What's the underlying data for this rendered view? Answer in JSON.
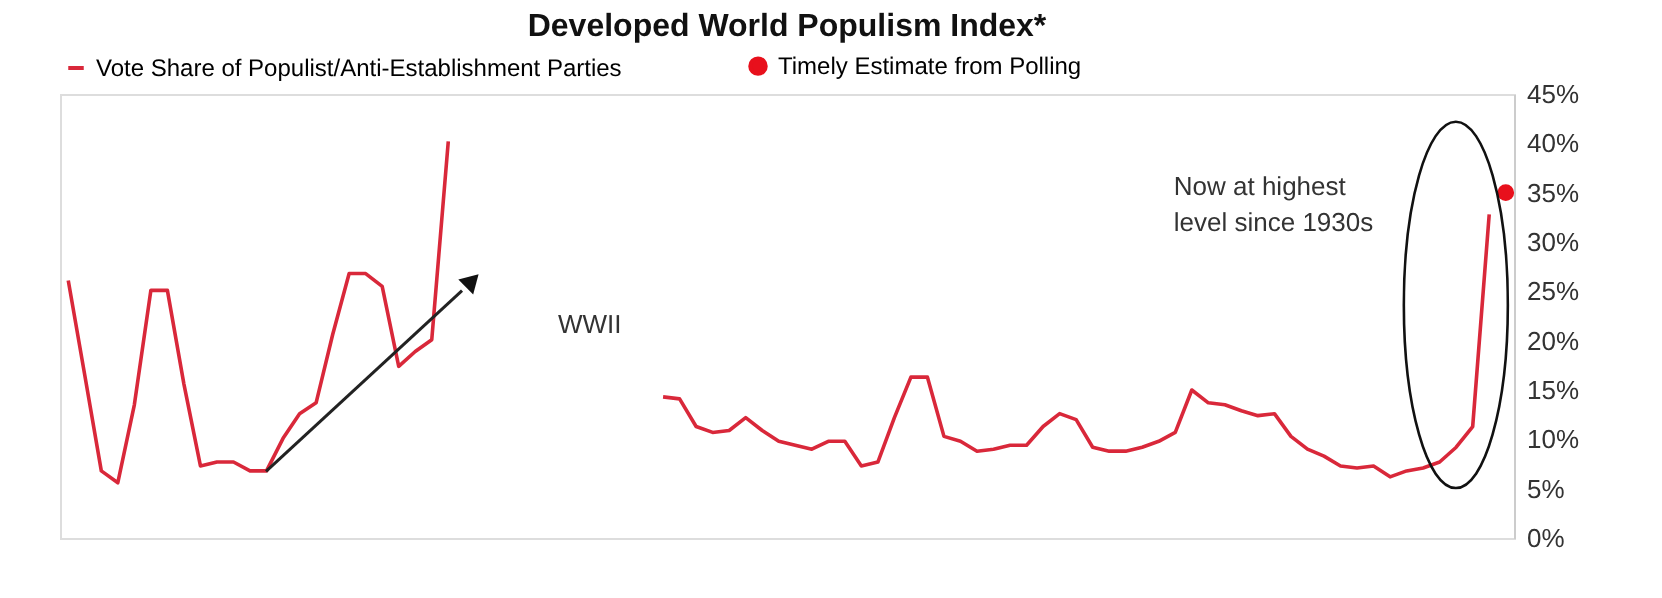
{
  "chart_data": {
    "type": "line",
    "title": "Developed World Populism Index*",
    "categories": [
      null,
      null,
      null,
      null,
      null,
      null,
      null,
      null,
      null,
      null,
      null,
      null,
      null,
      null,
      null,
      null,
      null,
      null,
      null,
      null,
      null,
      null,
      null,
      null,
      null,
      null,
      null,
      null,
      null,
      null,
      null,
      null,
      null,
      null,
      null,
      null,
      null,
      null,
      null,
      null,
      null,
      null,
      null,
      null,
      null,
      null,
      null,
      null,
      null,
      null,
      null,
      null,
      null,
      null,
      null,
      null,
      null,
      null,
      null,
      null,
      null,
      null,
      null,
      null,
      null,
      null,
      null,
      null,
      null,
      null,
      null,
      null,
      null,
      null,
      null,
      null,
      null,
      null,
      null,
      null,
      null,
      null,
      null,
      null,
      null,
      null,
      null,
      null
    ],
    "series": [
      {
        "name": "Vote Share of Populist/Anti-Establishment Parties",
        "color": "#d9283a",
        "values": [
          26.1,
          16.5,
          6.8,
          5.6,
          13.5,
          25.1,
          25.1,
          15.6,
          7.3,
          7.7,
          7.7,
          6.8,
          6.8,
          10.1,
          12.6,
          13.7,
          20.6,
          26.8,
          26.8,
          25.5,
          17.4,
          18.9,
          20.1,
          40.2,
          null,
          null,
          null,
          null,
          null,
          null,
          null,
          null,
          null,
          null,
          null,
          null,
          null,
          null,
          null,
          null,
          null,
          null,
          null,
          null,
          null,
          null,
          null,
          null,
          null,
          null,
          null,
          null,
          null,
          null,
          null,
          null,
          null,
          null,
          null,
          null,
          null,
          null,
          null,
          null,
          null,
          null,
          null,
          null,
          null,
          null,
          null,
          null,
          null,
          null,
          null,
          null,
          null,
          null,
          null,
          null,
          null,
          null,
          null,
          null,
          null,
          null,
          null,
          null
        ]
      },
      {
        "color": "#d9283a",
        "values": [
          null,
          null,
          null,
          null,
          null,
          null,
          null,
          null,
          null,
          null,
          null,
          null,
          null,
          null,
          null,
          null,
          null,
          null,
          null,
          null,
          null,
          null,
          null,
          null,
          null,
          null,
          null,
          null,
          null,
          null,
          null,
          null,
          null,
          null,
          null,
          null,
          14.3,
          14.1,
          11.3,
          10.7,
          10.9,
          12.2,
          10.9,
          9.8,
          9.4,
          9.0,
          9.8,
          9.8,
          7.3,
          7.7,
          12.2,
          16.3,
          16.3,
          10.3,
          9.8,
          8.8,
          9.0,
          9.4,
          9.4,
          11.3,
          12.6,
          12.0,
          9.2,
          8.8,
          8.8,
          9.2,
          9.8,
          10.7,
          15.0,
          13.7,
          13.5,
          12.9,
          12.4,
          12.6,
          10.3,
          9.0,
          8.3,
          7.3,
          7.1,
          7.3,
          6.2,
          6.8,
          7.1,
          7.7,
          9.2,
          11.3,
          32.8,
          null
        ]
      },
      {
        "name": "Timely Estimate from Polling",
        "type": "scatter",
        "marker": "circle",
        "color": "#e8101c",
        "values": [
          null,
          null,
          null,
          null,
          null,
          null,
          null,
          null,
          null,
          null,
          null,
          null,
          null,
          null,
          null,
          null,
          null,
          null,
          null,
          null,
          null,
          null,
          null,
          null,
          null,
          null,
          null,
          null,
          null,
          null,
          null,
          null,
          null,
          null,
          null,
          null,
          null,
          null,
          null,
          null,
          null,
          null,
          null,
          null,
          null,
          null,
          null,
          null,
          null,
          null,
          null,
          null,
          null,
          null,
          null,
          null,
          null,
          null,
          null,
          null,
          null,
          null,
          null,
          null,
          null,
          null,
          null,
          null,
          null,
          null,
          null,
          null,
          null,
          null,
          null,
          null,
          null,
          null,
          null,
          null,
          null,
          null,
          null,
          null,
          null,
          null,
          null,
          35
        ]
      }
    ],
    "ylim": [
      0,
      45
    ],
    "yticks": [
      {
        "value": 0,
        "label": "0%"
      },
      {
        "value": 5,
        "label": "5%"
      },
      {
        "value": 10,
        "label": "10%"
      },
      {
        "value": 15,
        "label": "15%"
      },
      {
        "value": 20,
        "label": "20%"
      },
      {
        "value": 25,
        "label": "25%"
      },
      {
        "value": 30,
        "label": "30%"
      },
      {
        "value": 35,
        "label": "35%"
      },
      {
        "value": 40,
        "label": "40%"
      },
      {
        "value": 45,
        "label": "45%"
      }
    ],
    "tick_labels": "y",
    "grid": false,
    "legend": "top",
    "line_style": "solid",
    "annotations": [
      "WWII",
      "Now at highest level since 1930s"
    ]
  }
}
